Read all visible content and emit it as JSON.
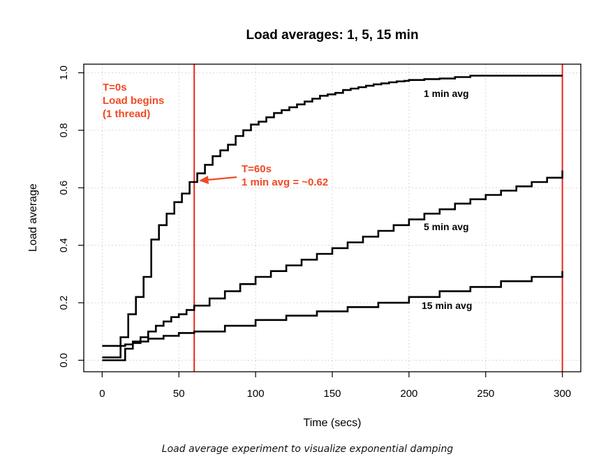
{
  "chart_data": {
    "type": "line",
    "title": "Load averages: 1, 5, 15 min",
    "xlabel": "Time (secs)",
    "ylabel": "Load average",
    "xlim": [
      -12,
      312
    ],
    "ylim": [
      -0.04,
      1.03
    ],
    "xticks": [
      0,
      50,
      100,
      150,
      200,
      250,
      300
    ],
    "yticks": [
      "0.0",
      "0.2",
      "0.4",
      "0.6",
      "0.8",
      "1.0"
    ],
    "grid": true,
    "vlines": [
      60,
      300
    ],
    "vline_color": "#e8261c",
    "series": [
      {
        "name": "1 min avg",
        "x": [
          0,
          5,
          10,
          12,
          15,
          17,
          20,
          22,
          25,
          27,
          30,
          32,
          35,
          37,
          40,
          42,
          45,
          47,
          50,
          52,
          55,
          57,
          60,
          62,
          65,
          67,
          70,
          72,
          75,
          77,
          80,
          82,
          85,
          87,
          90,
          92,
          95,
          97,
          100,
          102,
          105,
          107,
          110,
          112,
          115,
          117,
          120,
          122,
          125,
          127,
          130,
          132,
          135,
          137,
          140,
          142,
          145,
          147,
          150,
          152,
          155,
          157,
          160,
          162,
          165,
          167,
          170,
          172,
          175,
          177,
          180,
          182,
          185,
          187,
          190,
          192,
          195,
          197,
          200,
          210,
          220,
          230,
          240,
          250,
          260,
          270,
          280,
          290,
          300
        ],
        "values": [
          0.01,
          0.01,
          0.01,
          0.08,
          0.08,
          0.16,
          0.16,
          0.22,
          0.22,
          0.29,
          0.29,
          0.42,
          0.42,
          0.47,
          0.47,
          0.51,
          0.51,
          0.55,
          0.55,
          0.58,
          0.58,
          0.62,
          0.62,
          0.65,
          0.65,
          0.68,
          0.68,
          0.71,
          0.71,
          0.73,
          0.73,
          0.75,
          0.75,
          0.78,
          0.78,
          0.8,
          0.8,
          0.82,
          0.82,
          0.83,
          0.83,
          0.845,
          0.845,
          0.86,
          0.86,
          0.87,
          0.87,
          0.88,
          0.88,
          0.89,
          0.89,
          0.9,
          0.9,
          0.91,
          0.91,
          0.92,
          0.92,
          0.925,
          0.925,
          0.93,
          0.93,
          0.94,
          0.94,
          0.945,
          0.945,
          0.95,
          0.95,
          0.955,
          0.955,
          0.96,
          0.96,
          0.963,
          0.963,
          0.967,
          0.967,
          0.97,
          0.97,
          0.972,
          0.975,
          0.978,
          0.98,
          0.985,
          0.99,
          0.99,
          0.99,
          0.99,
          0.99,
          0.99,
          0.99
        ]
      },
      {
        "name": "5 min avg",
        "x": [
          0,
          10,
          15,
          20,
          25,
          30,
          35,
          40,
          45,
          50,
          55,
          60,
          70,
          80,
          90,
          100,
          110,
          120,
          130,
          140,
          150,
          160,
          170,
          180,
          190,
          200,
          210,
          220,
          230,
          240,
          250,
          260,
          270,
          280,
          290,
          300
        ],
        "values": [
          0.0,
          0.0,
          0.04,
          0.06,
          0.08,
          0.1,
          0.12,
          0.135,
          0.15,
          0.16,
          0.175,
          0.19,
          0.215,
          0.24,
          0.265,
          0.29,
          0.31,
          0.33,
          0.35,
          0.37,
          0.39,
          0.41,
          0.43,
          0.45,
          0.47,
          0.49,
          0.51,
          0.525,
          0.545,
          0.56,
          0.575,
          0.59,
          0.605,
          0.62,
          0.635,
          0.66
        ]
      },
      {
        "name": "15 min avg",
        "x": [
          0,
          10,
          15,
          20,
          30,
          40,
          50,
          60,
          80,
          100,
          120,
          140,
          160,
          180,
          200,
          220,
          240,
          260,
          280,
          300
        ],
        "values": [
          0.05,
          0.05,
          0.055,
          0.065,
          0.075,
          0.085,
          0.095,
          0.1,
          0.12,
          0.14,
          0.155,
          0.17,
          0.185,
          0.2,
          0.22,
          0.24,
          0.255,
          0.275,
          0.29,
          0.31
        ]
      }
    ],
    "annotations": {
      "start_line1": "T=0s",
      "start_line2": "Load begins",
      "start_line3": "(1 thread)",
      "t60_line1": "T=60s",
      "t60_line2": "1 min avg = ~0.62",
      "annotation_color": "#f04a23"
    }
  },
  "caption": "Load average experiment to visualize exponential damping"
}
